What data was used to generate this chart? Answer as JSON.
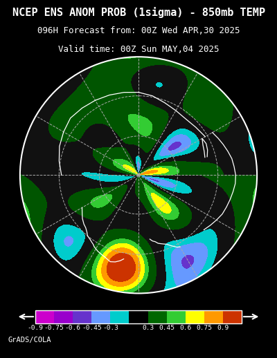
{
  "title_line1": "NCEP ENS ANOM PROB (1sigma) - 850mb TEMP",
  "title_line2": "096H Forecast from: 00Z Wed APR,30 2025",
  "title_line3": "Valid time: 00Z Sun MAY,04 2025",
  "credit": "GrADS/COLA",
  "background_color": "#000000",
  "colorbar_labels": [
    "-0.9",
    "-0.75",
    "-0.6",
    "-0.45",
    "-0.3",
    "0.3",
    "0.45",
    "0.6",
    "0.75",
    "0.9"
  ],
  "colorbar_colors": [
    "#cc00cc",
    "#9900cc",
    "#6633cc",
    "#6699ff",
    "#00cccc",
    "#000000",
    "#006600",
    "#33cc33",
    "#ffff00",
    "#ff9900",
    "#cc3300"
  ],
  "title_color": "#ffffff",
  "title_fontsize": 11,
  "subtitle_fontsize": 9
}
